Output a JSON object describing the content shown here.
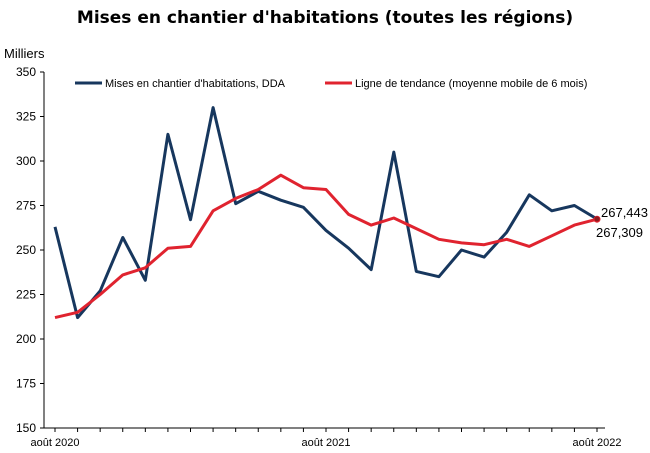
{
  "chart_data": {
    "type": "line",
    "title": "Mises en chantier d'habitations (toutes les régions)",
    "ylabel": "Milliers",
    "ylim": [
      150,
      350
    ],
    "yticks": [
      150,
      175,
      200,
      225,
      250,
      275,
      300,
      325,
      350
    ],
    "grid": false,
    "legend_position": "top",
    "x": [
      "2020-08",
      "2020-09",
      "2020-10",
      "2020-11",
      "2020-12",
      "2021-01",
      "2021-02",
      "2021-03",
      "2021-04",
      "2021-05",
      "2021-06",
      "2021-07",
      "2021-08",
      "2021-09",
      "2021-10",
      "2021-11",
      "2021-12",
      "2022-01",
      "2022-02",
      "2022-03",
      "2022-04",
      "2022-05",
      "2022-06",
      "2022-07",
      "2022-08"
    ],
    "xtick_labels": [
      {
        "x": "2020-08",
        "label": "août 2020"
      },
      {
        "x": "2021-08",
        "label": "août 2021"
      },
      {
        "x": "2022-08",
        "label": "août 2022"
      }
    ],
    "series": [
      {
        "name": "Mises en chantier d'habitations, DDA",
        "color": "#17375e",
        "values": [
          263,
          212,
          227,
          257,
          233,
          315,
          267,
          330,
          276,
          283,
          278,
          274,
          261,
          251,
          239,
          305,
          238,
          235,
          250,
          246,
          260,
          281,
          272,
          275,
          267.443
        ]
      },
      {
        "name": "Ligne de tendance (moyenne mobile de 6 mois)",
        "color": "#e0232f",
        "values": [
          212,
          215,
          225,
          236,
          240,
          251,
          252,
          272,
          279,
          284,
          292,
          285,
          284,
          270,
          264,
          268,
          262,
          256,
          254,
          253,
          256,
          252,
          258,
          264,
          267.309
        ]
      }
    ],
    "end_labels": {
      "series_1": "267,443",
      "series_2": "267,309"
    }
  }
}
